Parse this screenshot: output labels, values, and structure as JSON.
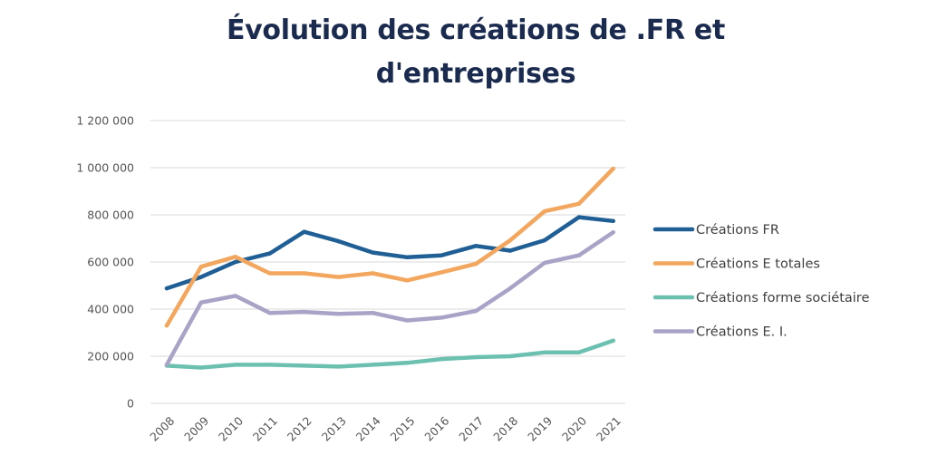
{
  "chart_data": {
    "type": "line",
    "title": "Évolution des créations de .FR et d'entreprises",
    "title_lines": [
      "Évolution des créations de .FR et",
      "d'entreprises"
    ],
    "x": [
      "2008",
      "2009",
      "2010",
      "2011",
      "2012",
      "2013",
      "2014",
      "2015",
      "2016",
      "2017",
      "2018",
      "2019",
      "2020",
      "2021"
    ],
    "ylim": [
      0,
      1200000
    ],
    "yticks": [
      0,
      200000,
      400000,
      600000,
      800000,
      1000000,
      1200000
    ],
    "ytick_labels": [
      "0",
      "200 000",
      "400 000",
      "600 000",
      "800 000",
      "1 000 000",
      "1 200 000"
    ],
    "xlabel": "",
    "ylabel": "",
    "grid": true,
    "legend_position": "right",
    "series": [
      {
        "name": "Créations FR",
        "color": "#1f5f96",
        "values": [
          488000,
          536000,
          600000,
          636000,
          728000,
          688000,
          640000,
          620000,
          628000,
          668000,
          648000,
          692000,
          790000,
          774000
        ]
      },
      {
        "name": "Créations E totales",
        "color": "#f2a65e",
        "values": [
          330000,
          580000,
          622000,
          552000,
          552000,
          536000,
          552000,
          522000,
          556000,
          592000,
          692000,
          815000,
          847000,
          996000
        ]
      },
      {
        "name": "Créations forme sociétaire",
        "color": "#6cc0b0",
        "values": [
          160000,
          152000,
          164000,
          164000,
          160000,
          156000,
          164000,
          172000,
          188000,
          196000,
          200000,
          216000,
          216000,
          266000
        ]
      },
      {
        "name": "Créations E. I.",
        "color": "#aaa3c8",
        "values": [
          164000,
          428000,
          456000,
          384000,
          388000,
          380000,
          384000,
          352000,
          364000,
          392000,
          488000,
          596000,
          628000,
          726000
        ]
      }
    ]
  }
}
